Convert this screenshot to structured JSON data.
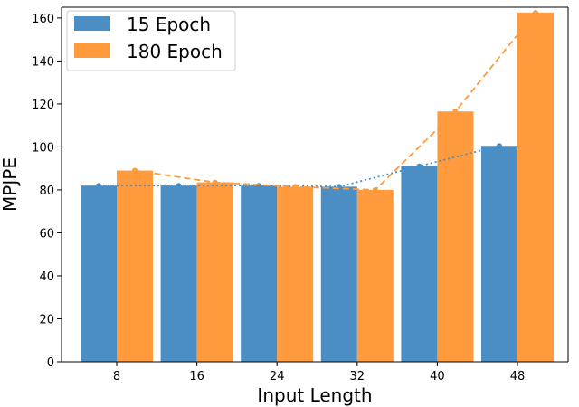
{
  "chart_data": {
    "type": "bar",
    "xlabel": "Input Length",
    "ylabel": "MPJPE",
    "categories": [
      "8",
      "16",
      "24",
      "32",
      "40",
      "48"
    ],
    "ylim": [
      0,
      165
    ],
    "yticks": [
      0,
      20,
      40,
      60,
      80,
      100,
      120,
      140,
      160
    ],
    "grid": false,
    "legend_position": "top-left",
    "series": [
      {
        "name": "15 Epoch",
        "color": "#4a8ec4",
        "values": [
          82.0,
          82.0,
          82.0,
          81.5,
          91.0,
          100.5
        ],
        "trend_line": "dotted"
      },
      {
        "name": "180 Epoch",
        "color": "#ff9a3d",
        "values": [
          89.0,
          83.5,
          81.5,
          80.0,
          116.5,
          162.5
        ],
        "trend_line": "dashed"
      }
    ]
  }
}
